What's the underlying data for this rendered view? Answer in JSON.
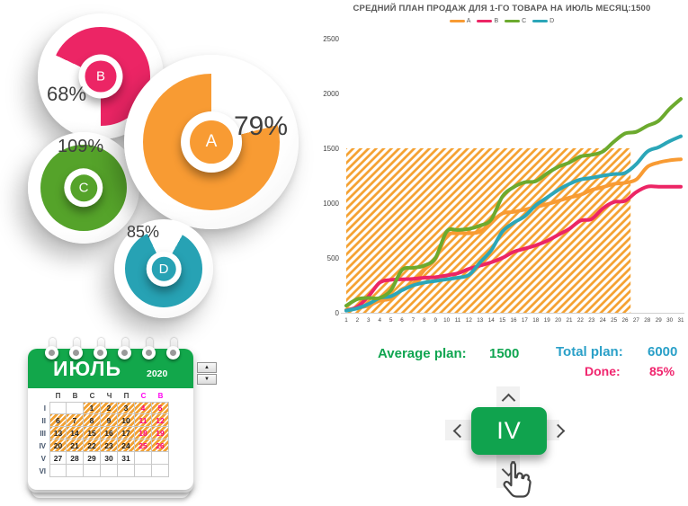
{
  "chart_data": {
    "type": "line",
    "title": "СРЕДНИЙ ПЛАН ПРОДАЖ ДЛЯ 1-ГО ТОВАРА НА ИЮЛЬ МЕСЯЦ:1500",
    "legend_position": "top",
    "days": [
      1,
      2,
      3,
      4,
      5,
      6,
      7,
      8,
      9,
      10,
      11,
      12,
      13,
      14,
      15,
      16,
      17,
      18,
      19,
      20,
      21,
      22,
      23,
      24,
      25,
      26,
      27,
      28,
      29,
      30,
      31
    ],
    "ylim": [
      0,
      2500
    ],
    "yticks": [
      0,
      500,
      1000,
      1500,
      2000,
      2500
    ],
    "plan_region": {
      "day_start": 1,
      "day_end": 26.5,
      "value_top": 1500,
      "style": "diagonal-hatch",
      "color": "#F5A02E"
    },
    "series": [
      {
        "name": "A",
        "color": "#F89B33",
        "values": [
          25,
          45,
          65,
          110,
          130,
          215,
          265,
          390,
          490,
          700,
          725,
          725,
          740,
          825,
          905,
          920,
          940,
          965,
          990,
          1020,
          1050,
          1075,
          1120,
          1145,
          1175,
          1185,
          1215,
          1330,
          1370,
          1390,
          1400
        ]
      },
      {
        "name": "B",
        "color": "#EC2565",
        "values": [
          20,
          55,
          150,
          275,
          300,
          305,
          310,
          320,
          325,
          340,
          360,
          400,
          430,
          460,
          500,
          555,
          585,
          615,
          655,
          710,
          765,
          840,
          855,
          950,
          1010,
          1020,
          1100,
          1150,
          1150,
          1150,
          1150
        ]
      },
      {
        "name": "C",
        "color": "#6CAA2E",
        "values": [
          65,
          125,
          135,
          135,
          205,
          390,
          410,
          430,
          500,
          740,
          755,
          765,
          795,
          850,
          1060,
          1145,
          1190,
          1200,
          1270,
          1330,
          1370,
          1425,
          1440,
          1470,
          1560,
          1635,
          1650,
          1705,
          1750,
          1860,
          1950
        ]
      },
      {
        "name": "D",
        "color": "#2BA6B8",
        "values": [
          20,
          40,
          80,
          135,
          150,
          205,
          250,
          275,
          290,
          305,
          320,
          345,
          460,
          570,
          740,
          820,
          880,
          980,
          1050,
          1120,
          1175,
          1215,
          1230,
          1250,
          1265,
          1275,
          1355,
          1470,
          1510,
          1565,
          1610
        ]
      }
    ]
  },
  "gauges": {
    "items": [
      {
        "id": "A",
        "letter": "A",
        "percent_label": "79%",
        "percent": 79,
        "color": "#F89B33"
      },
      {
        "id": "B",
        "letter": "B",
        "percent_label": "68%",
        "percent": 68,
        "color": "#EC2565"
      },
      {
        "id": "C",
        "letter": "C",
        "percent_label": "109%",
        "percent": 109,
        "color": "#55A32A"
      },
      {
        "id": "D",
        "letter": "D",
        "percent_label": "85%",
        "percent": 85,
        "color": "#27A2B4"
      }
    ]
  },
  "calendar": {
    "month": "ИЮЛЬ",
    "year": "2020",
    "day_headers": [
      "П",
      "В",
      "С",
      "Ч",
      "П",
      "С",
      "В"
    ],
    "weekend_columns": [
      5,
      6
    ],
    "week_labels": [
      "I",
      "II",
      "III",
      "IV",
      "V",
      "VI"
    ],
    "weeks": [
      [
        "",
        "",
        "1",
        "2",
        "3",
        "4",
        "5"
      ],
      [
        "6",
        "7",
        "8",
        "9",
        "10",
        "11",
        "12"
      ],
      [
        "13",
        "14",
        "15",
        "16",
        "17",
        "18",
        "19"
      ],
      [
        "20",
        "21",
        "22",
        "23",
        "24",
        "25",
        "26"
      ],
      [
        "27",
        "28",
        "29",
        "30",
        "31",
        "",
        ""
      ],
      [
        "",
        "",
        "",
        "",
        "",
        "",
        ""
      ]
    ],
    "hatched_until_day": 26
  },
  "spinner": {
    "up_icon": "▲",
    "down_icon": "▼"
  },
  "stats": {
    "average_label": "Average plan:",
    "average_value": "1500",
    "total_label": "Total plan:",
    "total_value": "6000",
    "done_label": "Done:",
    "done_value": "85%"
  },
  "navigator": {
    "label": "IV",
    "arrows": [
      "up",
      "down",
      "left",
      "right"
    ]
  }
}
